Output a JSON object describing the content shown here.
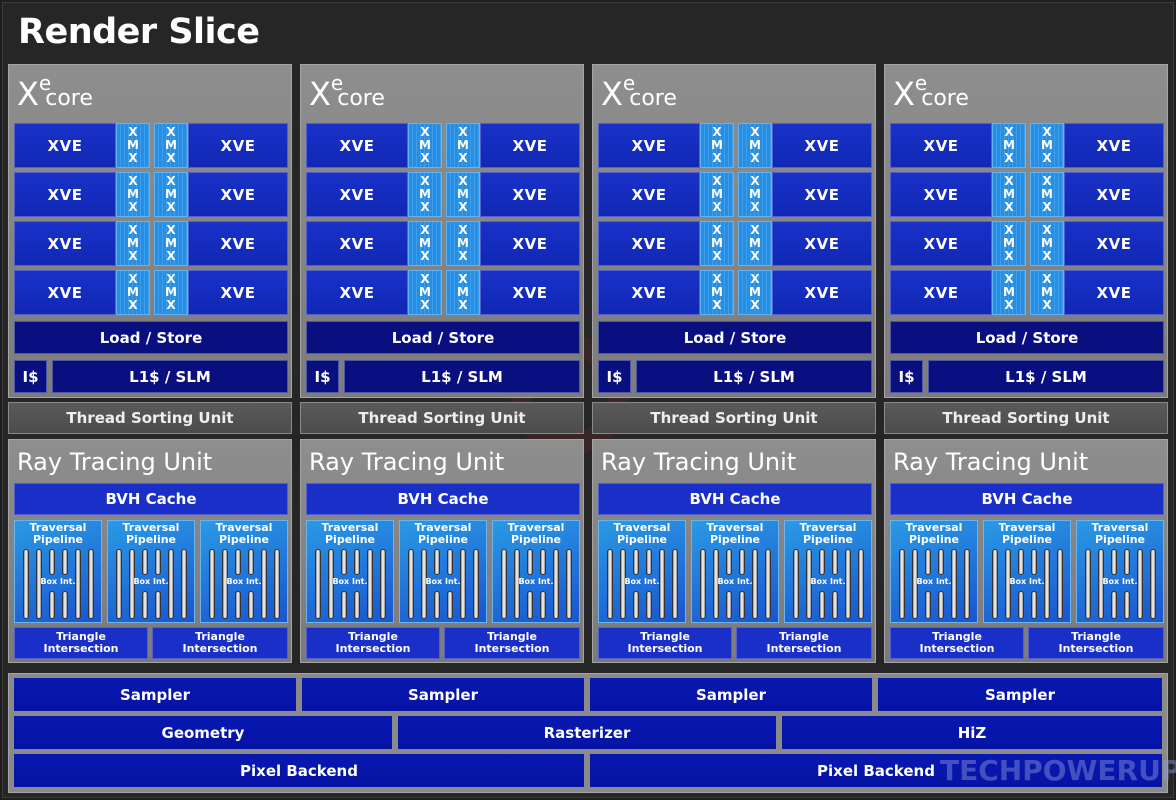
{
  "title": "Render Slice",
  "xe_cores": [
    {
      "label_x": "X",
      "label_e": "e",
      "label_core": "core",
      "rows": [
        {
          "left": "XVE",
          "xmx_a": [
            "X",
            "M",
            "X"
          ],
          "xmx_b": [
            "X",
            "M",
            "X"
          ],
          "right": "XVE"
        },
        {
          "left": "XVE",
          "xmx_a": [
            "X",
            "M",
            "X"
          ],
          "xmx_b": [
            "X",
            "M",
            "X"
          ],
          "right": "XVE"
        },
        {
          "left": "XVE",
          "xmx_a": [
            "X",
            "M",
            "X"
          ],
          "xmx_b": [
            "X",
            "M",
            "X"
          ],
          "right": "XVE"
        },
        {
          "left": "XVE",
          "xmx_a": [
            "X",
            "M",
            "X"
          ],
          "xmx_b": [
            "X",
            "M",
            "X"
          ],
          "right": "XVE"
        }
      ],
      "load_store": "Load / Store",
      "icache": "I$",
      "l1": "L1$ / SLM"
    },
    {
      "label_x": "X",
      "label_e": "e",
      "label_core": "core",
      "rows": [
        {
          "left": "XVE",
          "xmx_a": [
            "X",
            "M",
            "X"
          ],
          "xmx_b": [
            "X",
            "M",
            "X"
          ],
          "right": "XVE"
        },
        {
          "left": "XVE",
          "xmx_a": [
            "X",
            "M",
            "X"
          ],
          "xmx_b": [
            "X",
            "M",
            "X"
          ],
          "right": "XVE"
        },
        {
          "left": "XVE",
          "xmx_a": [
            "X",
            "M",
            "X"
          ],
          "xmx_b": [
            "X",
            "M",
            "X"
          ],
          "right": "XVE"
        },
        {
          "left": "XVE",
          "xmx_a": [
            "X",
            "M",
            "X"
          ],
          "xmx_b": [
            "X",
            "M",
            "X"
          ],
          "right": "XVE"
        }
      ],
      "load_store": "Load / Store",
      "icache": "I$",
      "l1": "L1$ / SLM"
    },
    {
      "label_x": "X",
      "label_e": "e",
      "label_core": "core",
      "rows": [
        {
          "left": "XVE",
          "xmx_a": [
            "X",
            "M",
            "X"
          ],
          "xmx_b": [
            "X",
            "M",
            "X"
          ],
          "right": "XVE"
        },
        {
          "left": "XVE",
          "xmx_a": [
            "X",
            "M",
            "X"
          ],
          "xmx_b": [
            "X",
            "M",
            "X"
          ],
          "right": "XVE"
        },
        {
          "left": "XVE",
          "xmx_a": [
            "X",
            "M",
            "X"
          ],
          "xmx_b": [
            "X",
            "M",
            "X"
          ],
          "right": "XVE"
        },
        {
          "left": "XVE",
          "xmx_a": [
            "X",
            "M",
            "X"
          ],
          "xmx_b": [
            "X",
            "M",
            "X"
          ],
          "right": "XVE"
        }
      ],
      "load_store": "Load / Store",
      "icache": "I$",
      "l1": "L1$ / SLM"
    },
    {
      "label_x": "X",
      "label_e": "e",
      "label_core": "core",
      "rows": [
        {
          "left": "XVE",
          "xmx_a": [
            "X",
            "M",
            "X"
          ],
          "xmx_b": [
            "X",
            "M",
            "X"
          ],
          "right": "XVE"
        },
        {
          "left": "XVE",
          "xmx_a": [
            "X",
            "M",
            "X"
          ],
          "xmx_b": [
            "X",
            "M",
            "X"
          ],
          "right": "XVE"
        },
        {
          "left": "XVE",
          "xmx_a": [
            "X",
            "M",
            "X"
          ],
          "xmx_b": [
            "X",
            "M",
            "X"
          ],
          "right": "XVE"
        },
        {
          "left": "XVE",
          "xmx_a": [
            "X",
            "M",
            "X"
          ],
          "xmx_b": [
            "X",
            "M",
            "X"
          ],
          "right": "XVE"
        }
      ],
      "load_store": "Load / Store",
      "icache": "I$",
      "l1": "L1$ / SLM"
    }
  ],
  "thread_sorting_units": [
    "Thread Sorting Unit",
    "Thread Sorting Unit",
    "Thread Sorting Unit",
    "Thread Sorting Unit"
  ],
  "ray_tracing_units": [
    {
      "label": "Ray Tracing Unit",
      "bvh": "BVH Cache",
      "pipelines": [
        {
          "line1": "Traversal",
          "line2": "Pipeline",
          "box": "Box Int."
        },
        {
          "line1": "Traversal",
          "line2": "Pipeline",
          "box": "Box Int."
        },
        {
          "line1": "Traversal",
          "line2": "Pipeline",
          "box": "Box Int."
        }
      ],
      "triangles": [
        {
          "line1": "Triangle",
          "line2": "Intersection"
        },
        {
          "line1": "Triangle",
          "line2": "Intersection"
        }
      ]
    },
    {
      "label": "Ray Tracing Unit",
      "bvh": "BVH Cache",
      "pipelines": [
        {
          "line1": "Traversal",
          "line2": "Pipeline",
          "box": "Box Int."
        },
        {
          "line1": "Traversal",
          "line2": "Pipeline",
          "box": "Box Int."
        },
        {
          "line1": "Traversal",
          "line2": "Pipeline",
          "box": "Box Int."
        }
      ],
      "triangles": [
        {
          "line1": "Triangle",
          "line2": "Intersection"
        },
        {
          "line1": "Triangle",
          "line2": "Intersection"
        }
      ]
    },
    {
      "label": "Ray Tracing Unit",
      "bvh": "BVH Cache",
      "pipelines": [
        {
          "line1": "Traversal",
          "line2": "Pipeline",
          "box": "Box Int."
        },
        {
          "line1": "Traversal",
          "line2": "Pipeline",
          "box": "Box Int."
        },
        {
          "line1": "Traversal",
          "line2": "Pipeline",
          "box": "Box Int."
        }
      ],
      "triangles": [
        {
          "line1": "Triangle",
          "line2": "Intersection"
        },
        {
          "line1": "Triangle",
          "line2": "Intersection"
        }
      ]
    },
    {
      "label": "Ray Tracing Unit",
      "bvh": "BVH Cache",
      "pipelines": [
        {
          "line1": "Traversal",
          "line2": "Pipeline",
          "box": "Box Int."
        },
        {
          "line1": "Traversal",
          "line2": "Pipeline",
          "box": "Box Int."
        },
        {
          "line1": "Traversal",
          "line2": "Pipeline",
          "box": "Box Int."
        }
      ],
      "triangles": [
        {
          "line1": "Triangle",
          "line2": "Intersection"
        },
        {
          "line1": "Triangle",
          "line2": "Intersection"
        }
      ]
    }
  ],
  "shared": {
    "samplers": [
      "Sampler",
      "Sampler",
      "Sampler",
      "Sampler"
    ],
    "row2": [
      "Geometry",
      "Rasterizer",
      "HiZ"
    ],
    "row3": [
      "Pixel Backend",
      "Pixel Backend"
    ]
  },
  "watermark": "TECHPOWERUP",
  "colors": {
    "xve_blue": "#1a31c8",
    "xmx_cyan": "#2a8de0",
    "dark_navy": "#0a0f80",
    "panel_gray": "#8a8a8a",
    "background": "#262626"
  }
}
